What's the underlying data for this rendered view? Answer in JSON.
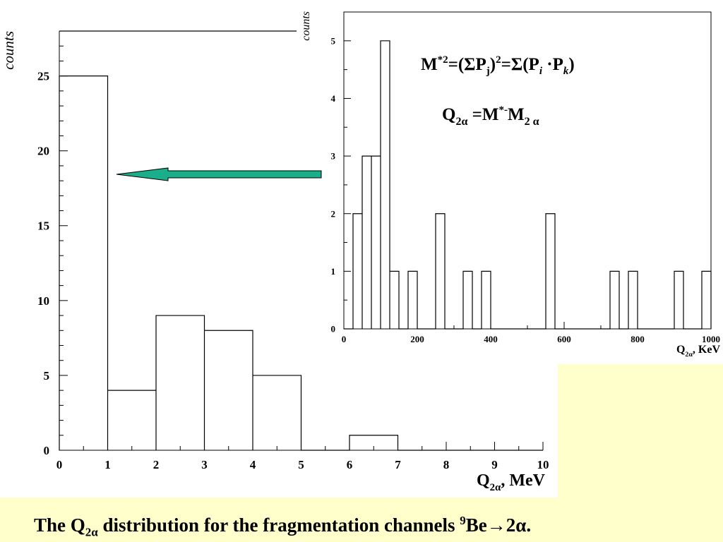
{
  "colors": {
    "slide_background": "#ffffcc",
    "plot_background": "#ffffff",
    "arrow": "#1aae8a",
    "line": "#000000"
  },
  "caption": {
    "text_before": "The Q",
    "subscript": "2α",
    "text_middle": " distribution for the fragmentation channels ",
    "superscript": "9",
    "text_after": "Be→2α."
  },
  "annotation": {
    "icon": "left-arrow-icon",
    "meaning": "points from inset to first bin of main histogram"
  },
  "chart_data": [
    {
      "type": "bar",
      "histogram": true,
      "ylabel": "counts",
      "xlabel_main": "Q",
      "xlabel_sub": "2α",
      "xlabel_suffix": ", MeV",
      "xlim": [
        0,
        10
      ],
      "ylim": [
        0,
        28
      ],
      "bin_edges": [
        0,
        1,
        2,
        3,
        4,
        5,
        6,
        7,
        8,
        9,
        10
      ],
      "values": [
        25,
        4,
        9,
        8,
        5,
        0,
        1,
        0,
        0,
        0
      ],
      "x_ticks": [
        0,
        1,
        2,
        3,
        4,
        5,
        6,
        7,
        8,
        9,
        10
      ],
      "y_ticks": [
        0,
        5,
        10,
        15,
        20,
        25
      ]
    },
    {
      "type": "bar",
      "histogram": true,
      "inset": true,
      "ylabel": "counts",
      "xlabel_main": "Q",
      "xlabel_sub": "2α",
      "xlabel_suffix": ", KeV",
      "xlim": [
        0,
        1000
      ],
      "ylim": [
        0,
        5.5
      ],
      "bin_width": 25,
      "bins": [
        {
          "x0": 25,
          "value": 2
        },
        {
          "x0": 50,
          "value": 3
        },
        {
          "x0": 75,
          "value": 3
        },
        {
          "x0": 100,
          "value": 5
        },
        {
          "x0": 125,
          "value": 1
        },
        {
          "x0": 175,
          "value": 1
        },
        {
          "x0": 250,
          "value": 2
        },
        {
          "x0": 325,
          "value": 1
        },
        {
          "x0": 375,
          "value": 1
        },
        {
          "x0": 550,
          "value": 2
        },
        {
          "x0": 725,
          "value": 1
        },
        {
          "x0": 775,
          "value": 1
        },
        {
          "x0": 900,
          "value": 1
        },
        {
          "x0": 975,
          "value": 1
        }
      ],
      "x_ticks": [
        0,
        200,
        400,
        600,
        800,
        1000
      ],
      "y_ticks": [
        0,
        1,
        2,
        3,
        4,
        5
      ],
      "formulas": {
        "line1": {
          "M": "M",
          "sup1": "*2",
          "eq1": "=(ΣP",
          "sub1": "j",
          "close1": ")",
          "sup2": "2",
          "eq2": "=Σ(P",
          "sub_i": "i",
          "dot": " ·P",
          "sub_k": "k",
          "close2": ")"
        },
        "line2": {
          "Q": "Q",
          "sub_q": "2α",
          "eq": " =M",
          "sup_star": "*-",
          "M": "M",
          "sub_m": "2 α"
        }
      }
    }
  ]
}
